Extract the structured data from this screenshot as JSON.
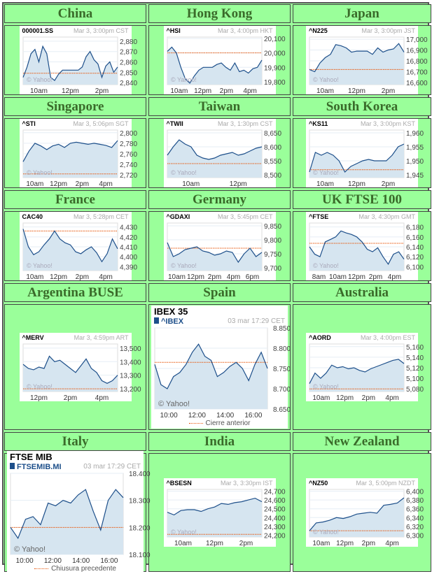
{
  "chart_data": [
    {
      "region": "China",
      "symbol": "000001.SS",
      "time": "Mar 3, 3:00pm CST",
      "yticks": [
        2880,
        2870,
        2860,
        2850,
        2840
      ],
      "ylim": [
        2838,
        2884
      ],
      "xticks": [
        "10am",
        "12pm",
        "2pm"
      ],
      "prev_close": 2849,
      "values": [
        2845,
        2855,
        2868,
        2872,
        2860,
        2875,
        2868,
        2845,
        2842,
        2848,
        2852,
        2852,
        2852,
        2852,
        2852,
        2855,
        2865,
        2870,
        2862,
        2858,
        2845,
        2856,
        2860,
        2850,
        2855
      ],
      "type": "line"
    },
    {
      "region": "Hong Kong",
      "symbol": "^HSI",
      "time": "Mar 3, 4:00pm HKT",
      "yticks": [
        20100,
        20000,
        19900,
        19800
      ],
      "ylim": [
        19780,
        20110
      ],
      "xticks": [
        "10am",
        "12pm",
        "2pm",
        "4pm"
      ],
      "prev_close": 20000,
      "values": [
        20010,
        20040,
        20000,
        19900,
        19820,
        19790,
        19840,
        19880,
        19900,
        19900,
        19900,
        19920,
        19930,
        19900,
        19880,
        19930,
        19870,
        19880,
        19860,
        19890,
        19900,
        19950
      ],
      "type": "line"
    },
    {
      "region": "Japan",
      "symbol": "^N225",
      "time": "Mar 3, 3:00pm JST",
      "yticks": [
        17000,
        16900,
        16800,
        16700,
        16600
      ],
      "ylim": [
        16580,
        17020
      ],
      "xticks": [
        "10am",
        "12pm",
        "2pm"
      ],
      "prev_close": 16720,
      "values": [
        16720,
        16700,
        16780,
        16830,
        16860,
        16950,
        16940,
        16920,
        16880,
        16890,
        16890,
        16890,
        16860,
        16920,
        16880,
        16900,
        16910,
        16960,
        16880
      ],
      "type": "line"
    },
    {
      "region": "Singapore",
      "symbol": "^STI",
      "time": "Mar 3, 5:06pm SGT",
      "yticks": [
        2800,
        2780,
        2760,
        2740,
        2720
      ],
      "ylim": [
        2715,
        2805
      ],
      "xticks": [
        "10am",
        "12pm",
        "2pm",
        "4pm"
      ],
      "prev_close": 2722,
      "values": [
        2745,
        2765,
        2780,
        2775,
        2768,
        2775,
        2778,
        2772,
        2780,
        2782,
        2780,
        2778,
        2780,
        2778,
        2776,
        2772,
        2785
      ],
      "type": "line"
    },
    {
      "region": "Taiwan",
      "symbol": "^TWII",
      "time": "Mar 3, 1:30pm CST",
      "yticks": [
        8650,
        8600,
        8550,
        8500
      ],
      "ylim": [
        8490,
        8660
      ],
      "xticks": [
        "10am",
        "12pm"
      ],
      "prev_close": 8540,
      "values": [
        8570,
        8600,
        8625,
        8610,
        8600,
        8570,
        8560,
        8555,
        8560,
        8570,
        8575,
        8580,
        8570,
        8575,
        8585,
        8595,
        8600
      ],
      "type": "line"
    },
    {
      "region": "South Korea",
      "symbol": "^KS11",
      "time": "Mar 3, 3:00pm KST",
      "yticks": [
        1960,
        1955,
        1950,
        1945
      ],
      "ylim": [
        1944,
        1961
      ],
      "xticks": [
        "10am",
        "12pm",
        "2pm"
      ],
      "prev_close": 1946.8,
      "values": [
        1946,
        1953,
        1952,
        1953,
        1952,
        1950,
        1946,
        1948,
        1949,
        1950,
        1950.5,
        1950,
        1950,
        1950,
        1952,
        1955,
        1956
      ],
      "type": "line"
    },
    {
      "region": "France",
      "symbol": "CAC40",
      "time": "Mar 3, 5:28pm CET",
      "yticks": [
        4430,
        4420,
        4410,
        4400,
        4390
      ],
      "ylim": [
        4386,
        4434
      ],
      "xticks": [
        "10am",
        "12pm",
        "2pm",
        "4pm"
      ],
      "prev_close": 4426,
      "values": [
        4428,
        4410,
        4402,
        4405,
        4412,
        4418,
        4426,
        4418,
        4414,
        4412,
        4405,
        4403,
        4407,
        4410,
        4404,
        4395,
        4403,
        4418,
        4408
      ],
      "type": "line"
    },
    {
      "region": "Germany",
      "symbol": "^GDAXI",
      "time": "Mar 3, 5:45pm CET",
      "yticks": [
        9850,
        9800,
        9750,
        9700
      ],
      "ylim": [
        9690,
        9860
      ],
      "xticks": [
        "10am",
        "12pm",
        "2pm",
        "4pm",
        "6pm"
      ],
      "prev_close": 9770,
      "values": [
        9790,
        9740,
        9750,
        9765,
        9770,
        9775,
        9760,
        9755,
        9745,
        9750,
        9760,
        9755,
        9720,
        9750,
        9770,
        9740,
        9755
      ],
      "type": "line"
    },
    {
      "region": "UK FTSE 100",
      "symbol": "^FTSE",
      "time": "Mar 3, 4:30pm GMT",
      "yticks": [
        6180,
        6160,
        6140,
        6120,
        6100
      ],
      "ylim": [
        6092,
        6188
      ],
      "xticks": [
        "8am",
        "10am",
        "12pm",
        "2pm",
        "4pm"
      ],
      "prev_close": 6147,
      "values": [
        6140,
        6125,
        6120,
        6150,
        6155,
        6160,
        6172,
        6168,
        6165,
        6160,
        6150,
        6135,
        6130,
        6138,
        6120,
        6105,
        6125,
        6130,
        6115
      ],
      "type": "line"
    },
    {
      "region": "Argentina BUSE",
      "symbol": "^MERV",
      "time": "Mar 3, 4:59pm  ART",
      "yticks": [
        13500,
        13400,
        13300,
        13200
      ],
      "ylim": [
        13180,
        13530
      ],
      "xticks": [
        "12pm",
        "2pm",
        "4pm"
      ],
      "prev_close": 13200,
      "values": [
        13380,
        13350,
        13340,
        13360,
        13350,
        13440,
        13400,
        13410,
        13380,
        13350,
        13320,
        13370,
        13420,
        13350,
        13320,
        13260,
        13240,
        13260,
        13300
      ],
      "type": "line"
    },
    {
      "region": "Spain",
      "title": "IBEX 35",
      "symbol": "^IBEX",
      "time": "03 mar 17:29 CET",
      "yticks": [
        "8.850",
        "8.800",
        "8.750",
        "8.700",
        "8.650"
      ],
      "ylim": [
        8650,
        8850
      ],
      "xticks": [
        "10:00",
        "12:00",
        "14:00",
        "16:00"
      ],
      "prev_close": 8765,
      "legend": "Cierre anterior",
      "values": [
        8760,
        8710,
        8700,
        8730,
        8740,
        8760,
        8790,
        8810,
        8780,
        8770,
        8730,
        8740,
        8755,
        8765,
        8750,
        8720,
        8760,
        8790,
        8750
      ],
      "type": "line"
    },
    {
      "region": "Australia",
      "symbol": "^AORD",
      "time": "Mar 3, 4:00pm EST",
      "yticks": [
        5160,
        5140,
        5120,
        5100,
        5080
      ],
      "ylim": [
        5075,
        5165
      ],
      "xticks": [
        "10am",
        "12pm",
        "2pm",
        "4pm"
      ],
      "prev_close": 5080,
      "values": [
        5090,
        5110,
        5100,
        5110,
        5125,
        5120,
        5122,
        5118,
        5120,
        5115,
        5112,
        5118,
        5122,
        5126,
        5130,
        5134,
        5136,
        5128
      ],
      "type": "line"
    },
    {
      "region": "Italy",
      "title": "FTSE MIB",
      "symbol": "FTSEMIB.MI",
      "time": "03 mar 17:29 CET",
      "yticks": [
        "18.400",
        "18.300",
        "18.200",
        "18.100"
      ],
      "ylim": [
        18100,
        18400
      ],
      "xticks": [
        "10:00",
        "12:00",
        "14:00",
        "16:00"
      ],
      "prev_close": 18200,
      "legend": "Chiusura precedente",
      "values": [
        18200,
        18160,
        18230,
        18240,
        18210,
        18290,
        18280,
        18300,
        18290,
        18320,
        18340,
        18260,
        18190,
        18300,
        18340,
        18310
      ],
      "type": "line"
    },
    {
      "region": "India",
      "symbol": "^BSESN",
      "time": "Mar 3, 3:30pm IST",
      "yticks": [
        24700,
        24600,
        24500,
        24400,
        24300,
        24200
      ],
      "ylim": [
        24180,
        24720
      ],
      "xticks": [
        "10am",
        "12pm",
        "2pm"
      ],
      "prev_close": 24210,
      "values": [
        24460,
        24430,
        24480,
        24490,
        24490,
        24470,
        24500,
        24520,
        24560,
        24550,
        24570,
        24580,
        24600,
        24620,
        24580
      ],
      "type": "line"
    },
    {
      "region": "New Zealand",
      "symbol": "^NZ50",
      "time": "Mar 3, 5:00pm NZDT",
      "yticks": [
        6400,
        6380,
        6360,
        6340,
        6320,
        6300
      ],
      "ylim": [
        6296,
        6404
      ],
      "xticks": [
        "10am",
        "12pm",
        "2pm",
        "4pm"
      ],
      "prev_close": 6310,
      "values": [
        6310,
        6328,
        6330,
        6334,
        6340,
        6338,
        6342,
        6348,
        6350,
        6352,
        6350,
        6368,
        6370,
        6373,
        6385
      ],
      "type": "line"
    }
  ],
  "watermark": "© Yahoo!",
  "colors": {
    "line": "#1d4f8a",
    "fill": "#d6e5f0",
    "prev": "#e8560a",
    "header_bg": "#9aff9a",
    "header_text": "#3a6b2a"
  }
}
